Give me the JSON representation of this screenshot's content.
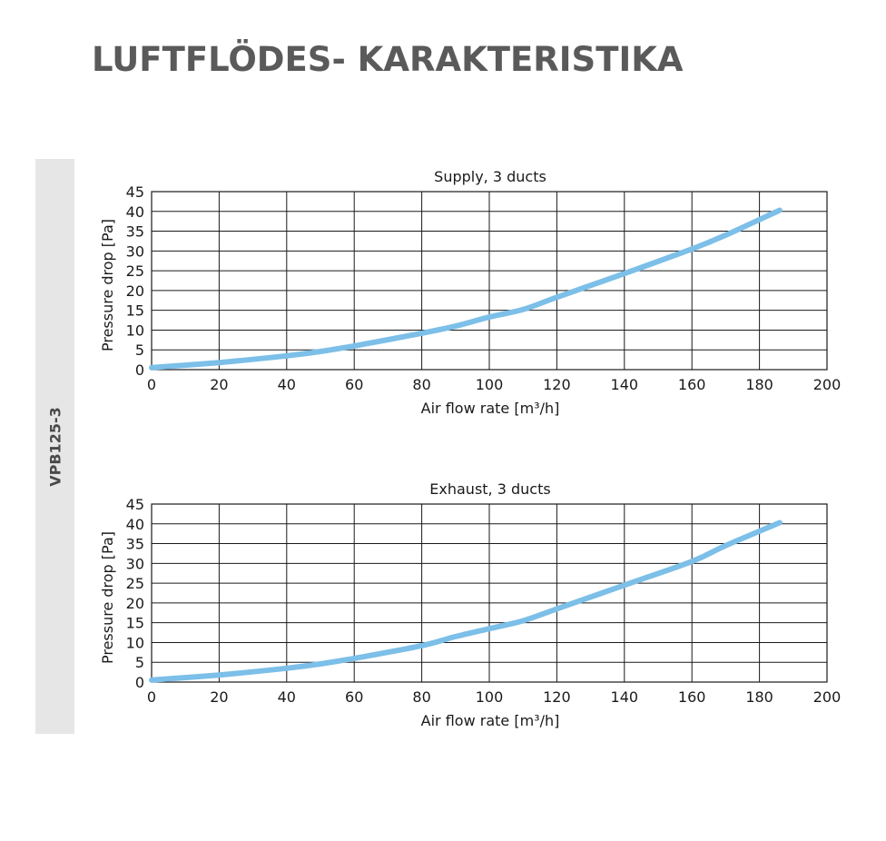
{
  "page": {
    "title": "LUFTFLÖDES- KARAKTERISTIKA",
    "side_label": "VPB125-3",
    "band_color": "#e6e6e6",
    "title_color": "#5a5a5a"
  },
  "chart_data": [
    {
      "type": "line",
      "title": "Supply, 3 ducts",
      "xlabel": "Air flow rate [m³/h]",
      "ylabel": "Pressure drop [Pa]",
      "xlim": [
        0,
        200
      ],
      "ylim": [
        0,
        45
      ],
      "xticks": [
        0,
        20,
        40,
        60,
        80,
        100,
        120,
        140,
        160,
        180,
        200
      ],
      "yticks": [
        0,
        5,
        10,
        15,
        20,
        25,
        30,
        35,
        40,
        45
      ],
      "grid": true,
      "series": [
        {
          "color": "#7cbfe8",
          "x": [
            0,
            20,
            40,
            50,
            60,
            80,
            90,
            100,
            110,
            120,
            140,
            160,
            170,
            186
          ],
          "y": [
            0.5,
            1.8,
            3.5,
            4.6,
            6,
            9.2,
            11,
            13.3,
            15.2,
            18.3,
            24.3,
            30.5,
            34,
            40.3
          ]
        }
      ]
    },
    {
      "type": "line",
      "title": "Exhaust, 3 ducts",
      "xlabel": "Air flow rate [m³/h]",
      "ylabel": "Pressure drop [Pa]",
      "xlim": [
        0,
        200
      ],
      "ylim": [
        0,
        45
      ],
      "xticks": [
        0,
        20,
        40,
        60,
        80,
        100,
        120,
        140,
        160,
        180,
        200
      ],
      "yticks": [
        0,
        5,
        10,
        15,
        20,
        25,
        30,
        35,
        40,
        45
      ],
      "grid": true,
      "series": [
        {
          "color": "#7cbfe8",
          "x": [
            0,
            20,
            40,
            50,
            60,
            80,
            90,
            100,
            110,
            120,
            140,
            160,
            170,
            186
          ],
          "y": [
            0.5,
            1.8,
            3.5,
            4.6,
            6,
            9.2,
            11.5,
            13.5,
            15.5,
            18.5,
            24.5,
            30.5,
            34.5,
            40.3
          ]
        }
      ]
    }
  ]
}
